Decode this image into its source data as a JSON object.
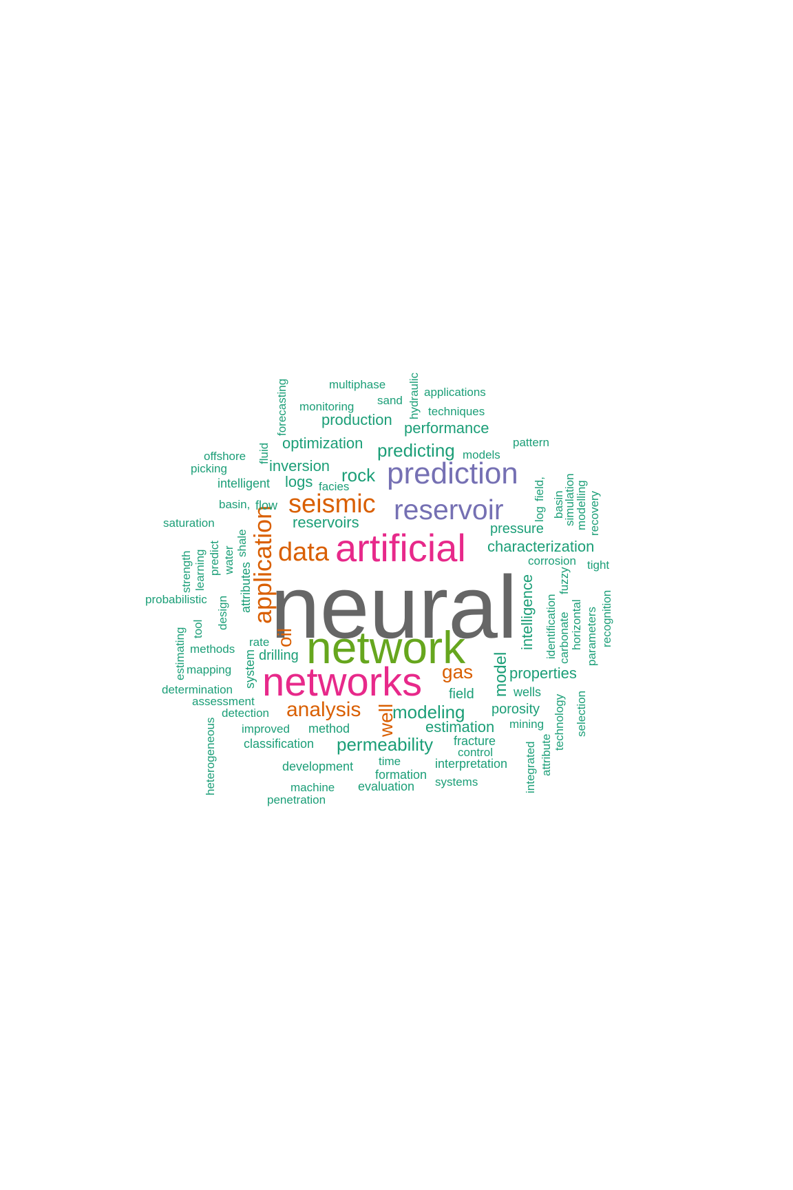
{
  "wordcloud": {
    "words": {
      "neural": "neural",
      "network": "network",
      "networks": "networks",
      "artificial": "artificial",
      "prediction": "prediction",
      "reservoir": "reservoir",
      "seismic": "seismic",
      "data": "data",
      "analysis": "analysis",
      "application": "application",
      "well": "well",
      "gas": "gas",
      "oil": "oil",
      "modeling": "modeling",
      "permeability": "permeability",
      "predicting": "predicting",
      "rock": "rock",
      "characterization": "characterization",
      "estimation": "estimation",
      "production": "production",
      "optimization": "optimization",
      "performance": "performance",
      "inversion": "inversion",
      "logs": "logs",
      "reservoirs": "reservoirs",
      "model": "model",
      "properties": "properties",
      "porosity": "porosity",
      "field": "field",
      "intelligence": "intelligence",
      "pressure": "pressure",
      "drilling": "drilling",
      "method": "method",
      "classification": "classification",
      "development": "development",
      "formation": "formation",
      "evaluation": "evaluation",
      "interpretation": "interpretation",
      "fracture": "fracture",
      "wells": "wells",
      "flow": "flow",
      "intelligent": "intelligent",
      "attributes": "attributes",
      "system": "system",
      "methods": "methods",
      "mapping": "mapping",
      "detection": "detection",
      "models": "models",
      "techniques": "techniques",
      "monitoring": "monitoring",
      "sand": "sand",
      "multiphase": "multiphase",
      "applications": "applications",
      "hydraulic": "hydraulic",
      "forecasting": "forecasting",
      "fluid": "fluid",
      "offshore": "offshore",
      "picking": "picking",
      "pattern": "pattern",
      "facies": "facies",
      "basin_comma": "basin,",
      "saturation": "saturation",
      "shale": "shale",
      "water": "water",
      "predict": "predict",
      "learning": "learning",
      "strength": "strength",
      "probabilistic": "probabilistic",
      "design": "design",
      "tool": "tool",
      "estimating": "estimating",
      "rate": "rate",
      "determination": "determination",
      "assessment": "assessment",
      "heterogeneous": "heterogeneous",
      "improved": "improved",
      "time": "time",
      "machine": "machine",
      "penetration": "penetration",
      "control": "control",
      "systems": "systems",
      "mining": "mining",
      "integrated": "integrated",
      "attribute": "attribute",
      "technology": "technology",
      "selection": "selection",
      "identification": "identification",
      "carbonate": "carbonate",
      "fuzzy": "fuzzy",
      "horizontal": "horizontal",
      "parameters": "parameters",
      "recognition": "recognition",
      "corrosion": "corrosion",
      "tight": "tight",
      "log": "log",
      "field_comma": "field,",
      "basin": "basin",
      "simulation": "simulation",
      "modelling": "modelling",
      "recovery": "recovery"
    }
  },
  "palette": {
    "teal": "#1b9e77",
    "orange": "#d95f02",
    "purple": "#7570b3",
    "magenta": "#e7298a",
    "green": "#66a61e",
    "gray": "#666666"
  }
}
